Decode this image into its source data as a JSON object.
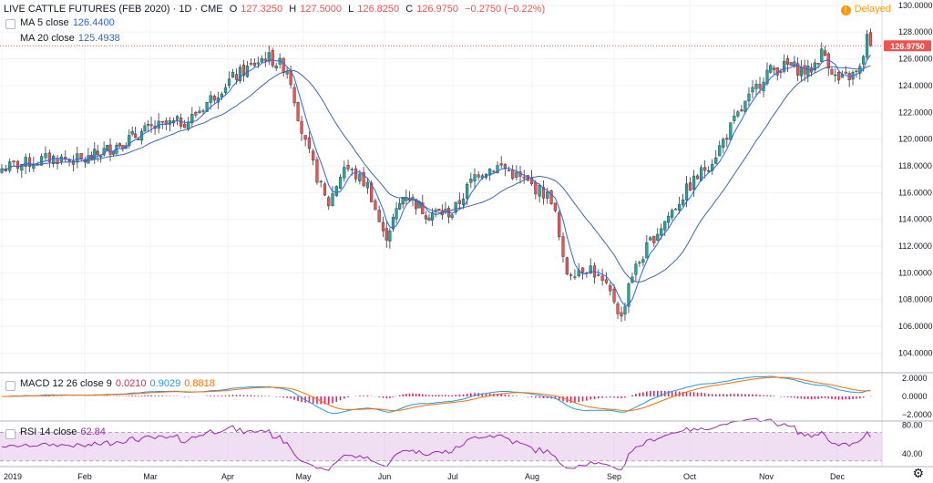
{
  "header": {
    "title": "LIVE CATTLE FUTURES (FEB 2020) · 1D · CME",
    "o_label": "O",
    "o": "127.3250",
    "h_label": "H",
    "h": "127.5000",
    "l_label": "L",
    "l": "126.8250",
    "c_label": "C",
    "c": "126.9750",
    "change": "−0.2750 (−0.22%)",
    "delayed": "Delayed"
  },
  "legend": {
    "ma5_label": "MA 5 close",
    "ma5_value": "126.4400",
    "ma20_label": "MA 20 close",
    "ma20_value": "125.4938",
    "macd_label": "MACD 12 26 close 9",
    "macd_hist": "0.0210",
    "macd_line": "0.9029",
    "macd_signal": "0.8818",
    "rsi_label": "RSI 14 close",
    "rsi_value": "62.84"
  },
  "colors": {
    "up": "#26a69a",
    "down": "#ef5350",
    "ma5": "#2962ff",
    "ma20": "#3f66a8",
    "macd": "#2196f3",
    "signal": "#ff6d00",
    "hist": "#e91e63",
    "rsi": "#9c27b0",
    "rsi_band": "#e1bee7",
    "grid": "#f0f3fa",
    "axis_text": "#131722",
    "price_badge": "#ef5350"
  },
  "chart_data": {
    "type": "candlestick",
    "y_axis_price": {
      "ticks": [
        "130.0000",
        "128.0000",
        "126.0000",
        "124.0000",
        "122.0000",
        "120.0000",
        "118.0000",
        "116.0000",
        "114.0000",
        "112.0000",
        "110.0000",
        "108.0000",
        "106.0000",
        "104.0000"
      ],
      "range": [
        102.6,
        130.4
      ]
    },
    "current_price": "126.9750",
    "x_axis": {
      "labels": [
        "2019",
        "Feb",
        "Mar",
        "Apr",
        "May",
        "Jun",
        "Jul",
        "Aug",
        "Sep",
        "Oct",
        "Nov",
        "Dec"
      ]
    },
    "price_anchors": [
      {
        "m": 0,
        "v": 117.8
      },
      {
        "m": 0.6,
        "v": 118.6
      },
      {
        "m": 1,
        "v": 118.4
      },
      {
        "m": 1.5,
        "v": 119.6
      },
      {
        "m": 2,
        "v": 120.8
      },
      {
        "m": 2.5,
        "v": 121.4
      },
      {
        "m": 3,
        "v": 124.3
      },
      {
        "m": 3.5,
        "v": 126.2
      },
      {
        "m": 3.8,
        "v": 125.2
      },
      {
        "m": 4,
        "v": 120.0
      },
      {
        "m": 4.3,
        "v": 115.0
      },
      {
        "m": 4.5,
        "v": 118.0
      },
      {
        "m": 4.8,
        "v": 116.5
      },
      {
        "m": 5,
        "v": 112.5
      },
      {
        "m": 5.3,
        "v": 116.0
      },
      {
        "m": 5.6,
        "v": 114.5
      },
      {
        "m": 6,
        "v": 114.5
      },
      {
        "m": 6.3,
        "v": 117.5
      },
      {
        "m": 6.6,
        "v": 118.0
      },
      {
        "m": 7,
        "v": 116.5
      },
      {
        "m": 7.25,
        "v": 115.5
      },
      {
        "m": 7.4,
        "v": 110.0
      },
      {
        "m": 7.7,
        "v": 110.5
      },
      {
        "m": 8,
        "v": 108.0
      },
      {
        "m": 8.1,
        "v": 106.5
      },
      {
        "m": 8.2,
        "v": 109.5
      },
      {
        "m": 8.5,
        "v": 112.5
      },
      {
        "m": 9,
        "v": 116.5
      },
      {
        "m": 9.3,
        "v": 118.5
      },
      {
        "m": 9.6,
        "v": 121.5
      },
      {
        "m": 10,
        "v": 125.0
      },
      {
        "m": 10.3,
        "v": 125.5
      },
      {
        "m": 10.6,
        "v": 125.0
      },
      {
        "m": 10.8,
        "v": 126.6
      },
      {
        "m": 11,
        "v": 124.3
      },
      {
        "m": 11.3,
        "v": 125.0
      },
      {
        "m": 11.4,
        "v": 127.6
      },
      {
        "m": 11.45,
        "v": 126.98
      }
    ],
    "macd": {
      "ticks": [
        "2.0000",
        "0.0000",
        "−2.0000"
      ],
      "range": [
        -2.6,
        2.6
      ],
      "last": {
        "macd": 0.9029,
        "signal": 0.8818,
        "hist": 0.021
      }
    },
    "rsi": {
      "ticks": [
        "80.00",
        "40.00"
      ],
      "range": [
        22,
        86
      ],
      "band": [
        30,
        70
      ],
      "last": 62.84
    }
  }
}
